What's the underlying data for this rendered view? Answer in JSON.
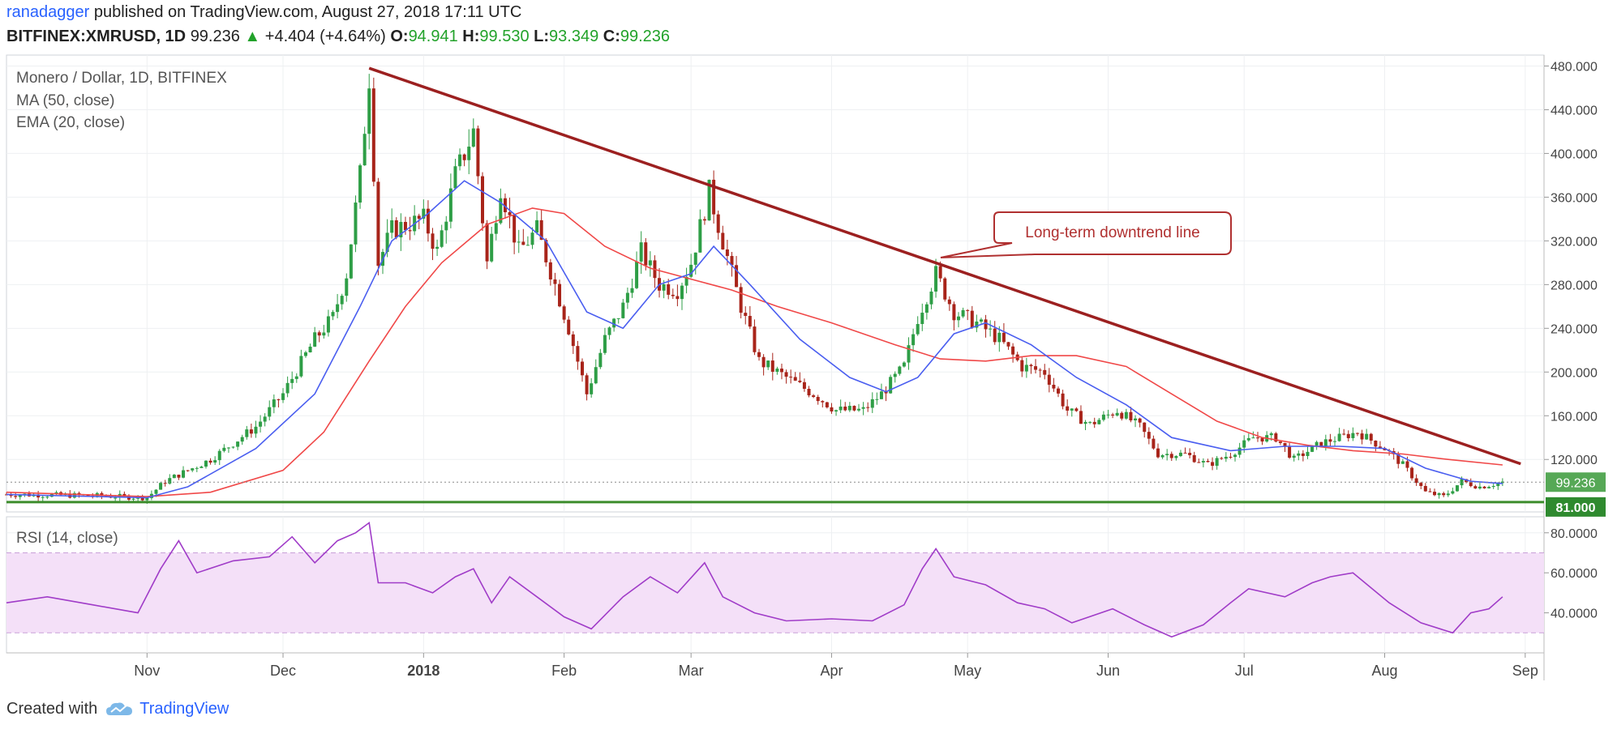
{
  "header": {
    "user": "ranadagger",
    "published_text": "published on TradingView.com, August 27, 2018 17:11 UTC",
    "symbol": "BITFINEX:XMRUSD, 1D",
    "last": "99.236",
    "change": "+4.404 (+4.64%)",
    "open_label": "O:",
    "open": "94.941",
    "high_label": "H:",
    "high": "99.530",
    "low_label": "L:",
    "low": "93.349",
    "close_label": "C:",
    "close": "99.236"
  },
  "legend": {
    "title": "Monero / Dollar, 1D, BITFINEX",
    "ma": "MA (50, close)",
    "ema": "EMA (20, close)",
    "rsi": "RSI (14, close)"
  },
  "annotation": {
    "text": "Long-term downtrend line"
  },
  "footer": {
    "created_with": "Created with",
    "brand": "TradingView"
  },
  "colors": {
    "up": "#2e9e46",
    "down": "#a8241a",
    "ma50": "#f04848",
    "ema20": "#4a5ef0",
    "trendline": "#9c2020",
    "support": "#3c8c2c",
    "rsi_line": "#a03cc8",
    "rsi_band": "#f4e0f8",
    "price_label_bg": "#2f8a2f"
  },
  "chart_data": [
    {
      "type": "candlestick",
      "title": "Monero / Dollar, 1D, BITFINEX",
      "x_ticks": [
        "Nov",
        "Dec",
        "2018",
        "Feb",
        "Mar",
        "Apr",
        "May",
        "Jun",
        "Jul",
        "Aug",
        "Sep"
      ],
      "y_ticks": [
        "480.000",
        "440.000",
        "400.000",
        "360.000",
        "320.000",
        "280.000",
        "240.000",
        "200.000",
        "160.000",
        "120.000"
      ],
      "ylim": [
        72,
        490
      ],
      "last_price_label": "99.236",
      "support_label": "81.000",
      "support_level": 81,
      "trendline": {
        "start": {
          "date": "2017-12-20",
          "value": 478
        },
        "end": {
          "date": "2018-08-31",
          "value": 116
        }
      },
      "close_path": [
        [
          "2017-10-01",
          88
        ],
        [
          "2017-10-20",
          87
        ],
        [
          "2017-11-01",
          85
        ],
        [
          "2017-11-05",
          100
        ],
        [
          "2017-11-15",
          120
        ],
        [
          "2017-11-25",
          150
        ],
        [
          "2017-12-01",
          180
        ],
        [
          "2017-12-08",
          230
        ],
        [
          "2017-12-12",
          250
        ],
        [
          "2017-12-15",
          290
        ],
        [
          "2017-12-18",
          380
        ],
        [
          "2017-12-20",
          470
        ],
        [
          "2017-12-22",
          300
        ],
        [
          "2017-12-25",
          330
        ],
        [
          "2018-01-01",
          340
        ],
        [
          "2018-01-04",
          310
        ],
        [
          "2018-01-08",
          380
        ],
        [
          "2018-01-12",
          420
        ],
        [
          "2018-01-15",
          300
        ],
        [
          "2018-01-18",
          370
        ],
        [
          "2018-01-22",
          310
        ],
        [
          "2018-01-26",
          330
        ],
        [
          "2018-01-30",
          280
        ],
        [
          "2018-02-02",
          240
        ],
        [
          "2018-02-06",
          180
        ],
        [
          "2018-02-10",
          230
        ],
        [
          "2018-02-14",
          260
        ],
        [
          "2018-02-18",
          310
        ],
        [
          "2018-02-22",
          280
        ],
        [
          "2018-02-26",
          275
        ],
        [
          "2018-03-01",
          300
        ],
        [
          "2018-03-05",
          365
        ],
        [
          "2018-03-08",
          320
        ],
        [
          "2018-03-12",
          260
        ],
        [
          "2018-03-16",
          210
        ],
        [
          "2018-03-22",
          195
        ],
        [
          "2018-03-28",
          180
        ],
        [
          "2018-04-02",
          165
        ],
        [
          "2018-04-08",
          165
        ],
        [
          "2018-04-12",
          180
        ],
        [
          "2018-04-17",
          205
        ],
        [
          "2018-04-20",
          250
        ],
        [
          "2018-04-24",
          290
        ],
        [
          "2018-04-28",
          255
        ],
        [
          "2018-05-03",
          245
        ],
        [
          "2018-05-08",
          230
        ],
        [
          "2018-05-13",
          205
        ],
        [
          "2018-05-18",
          200
        ],
        [
          "2018-05-23",
          165
        ],
        [
          "2018-05-28",
          152
        ],
        [
          "2018-06-03",
          165
        ],
        [
          "2018-06-08",
          150
        ],
        [
          "2018-06-12",
          125
        ],
        [
          "2018-06-18",
          125
        ],
        [
          "2018-06-23",
          115
        ],
        [
          "2018-06-28",
          125
        ],
        [
          "2018-07-03",
          140
        ],
        [
          "2018-07-08",
          140
        ],
        [
          "2018-07-12",
          120
        ],
        [
          "2018-07-18",
          135
        ],
        [
          "2018-07-22",
          140
        ],
        [
          "2018-07-26",
          145
        ],
        [
          "2018-08-01",
          130
        ],
        [
          "2018-08-05",
          115
        ],
        [
          "2018-08-10",
          90
        ],
        [
          "2018-08-14",
          86
        ],
        [
          "2018-08-18",
          100
        ],
        [
          "2018-08-22",
          95
        ],
        [
          "2018-08-27",
          99.236
        ]
      ],
      "series": [
        {
          "name": "MA (50, close)",
          "values": [
            [
              "2017-10-01",
              90
            ],
            [
              "2017-11-01",
              86
            ],
            [
              "2017-11-15",
              90
            ],
            [
              "2017-12-01",
              110
            ],
            [
              "2017-12-10",
              145
            ],
            [
              "2017-12-20",
              210
            ],
            [
              "2017-12-28",
              260
            ],
            [
              "2018-01-05",
              300
            ],
            [
              "2018-01-15",
              335
            ],
            [
              "2018-01-25",
              350
            ],
            [
              "2018-02-01",
              345
            ],
            [
              "2018-02-10",
              315
            ],
            [
              "2018-02-20",
              295
            ],
            [
              "2018-03-01",
              285
            ],
            [
              "2018-03-10",
              275
            ],
            [
              "2018-03-20",
              260
            ],
            [
              "2018-04-01",
              245
            ],
            [
              "2018-04-15",
              225
            ],
            [
              "2018-04-25",
              212
            ],
            [
              "2018-05-05",
              210
            ],
            [
              "2018-05-15",
              215
            ],
            [
              "2018-05-25",
              215
            ],
            [
              "2018-06-05",
              205
            ],
            [
              "2018-06-15",
              180
            ],
            [
              "2018-06-25",
              155
            ],
            [
              "2018-07-05",
              140
            ],
            [
              "2018-07-15",
              133
            ],
            [
              "2018-07-25",
              128
            ],
            [
              "2018-08-05",
              125
            ],
            [
              "2018-08-15",
              120
            ],
            [
              "2018-08-27",
              115
            ]
          ]
        },
        {
          "name": "EMA (20, close)",
          "values": [
            [
              "2017-10-01",
              88
            ],
            [
              "2017-11-01",
              85
            ],
            [
              "2017-11-10",
              95
            ],
            [
              "2017-11-25",
              130
            ],
            [
              "2017-12-08",
              180
            ],
            [
              "2017-12-18",
              260
            ],
            [
              "2017-12-25",
              320
            ],
            [
              "2018-01-02",
              345
            ],
            [
              "2018-01-10",
              375
            ],
            [
              "2018-01-18",
              355
            ],
            [
              "2018-01-28",
              320
            ],
            [
              "2018-02-06",
              255
            ],
            [
              "2018-02-14",
              240
            ],
            [
              "2018-02-22",
              280
            ],
            [
              "2018-03-01",
              290
            ],
            [
              "2018-03-06",
              315
            ],
            [
              "2018-03-14",
              280
            ],
            [
              "2018-03-25",
              230
            ],
            [
              "2018-04-05",
              195
            ],
            [
              "2018-04-13",
              182
            ],
            [
              "2018-04-20",
              195
            ],
            [
              "2018-04-28",
              235
            ],
            [
              "2018-05-05",
              245
            ],
            [
              "2018-05-15",
              225
            ],
            [
              "2018-05-25",
              195
            ],
            [
              "2018-06-05",
              170
            ],
            [
              "2018-06-15",
              140
            ],
            [
              "2018-06-28",
              128
            ],
            [
              "2018-07-10",
              132
            ],
            [
              "2018-07-22",
              132
            ],
            [
              "2018-08-01",
              130
            ],
            [
              "2018-08-10",
              112
            ],
            [
              "2018-08-20",
              100
            ],
            [
              "2018-08-27",
              98
            ]
          ]
        }
      ]
    },
    {
      "type": "line",
      "title": "RSI (14, close)",
      "x_ticks": [
        "Nov",
        "Dec",
        "2018",
        "Feb",
        "Mar",
        "Apr",
        "May",
        "Jun",
        "Jul",
        "Aug",
        "Sep"
      ],
      "y_ticks": [
        "80.0000",
        "60.0000",
        "40.0000"
      ],
      "ylim": [
        20,
        88
      ],
      "band": [
        30,
        70
      ],
      "series": [
        {
          "name": "RSI (14, close)",
          "values": [
            [
              "2017-10-01",
              45
            ],
            [
              "2017-10-10",
              48
            ],
            [
              "2017-10-20",
              44
            ],
            [
              "2017-10-30",
              40
            ],
            [
              "2017-11-04",
              62
            ],
            [
              "2017-11-08",
              76
            ],
            [
              "2017-11-12",
              60
            ],
            [
              "2017-11-20",
              66
            ],
            [
              "2017-11-28",
              68
            ],
            [
              "2017-12-03",
              78
            ],
            [
              "2017-12-08",
              65
            ],
            [
              "2017-12-13",
              76
            ],
            [
              "2017-12-17",
              80
            ],
            [
              "2017-12-20",
              85
            ],
            [
              "2017-12-22",
              55
            ],
            [
              "2017-12-28",
              55
            ],
            [
              "2018-01-03",
              50
            ],
            [
              "2018-01-08",
              58
            ],
            [
              "2018-01-12",
              62
            ],
            [
              "2018-01-16",
              45
            ],
            [
              "2018-01-20",
              58
            ],
            [
              "2018-01-26",
              48
            ],
            [
              "2018-02-01",
              38
            ],
            [
              "2018-02-07",
              32
            ],
            [
              "2018-02-14",
              48
            ],
            [
              "2018-02-20",
              58
            ],
            [
              "2018-02-26",
              50
            ],
            [
              "2018-03-04",
              65
            ],
            [
              "2018-03-08",
              48
            ],
            [
              "2018-03-15",
              40
            ],
            [
              "2018-03-22",
              36
            ],
            [
              "2018-04-01",
              37
            ],
            [
              "2018-04-10",
              36
            ],
            [
              "2018-04-17",
              44
            ],
            [
              "2018-04-21",
              62
            ],
            [
              "2018-04-24",
              72
            ],
            [
              "2018-04-28",
              58
            ],
            [
              "2018-05-05",
              54
            ],
            [
              "2018-05-12",
              45
            ],
            [
              "2018-05-18",
              42
            ],
            [
              "2018-05-24",
              35
            ],
            [
              "2018-06-02",
              42
            ],
            [
              "2018-06-09",
              34
            ],
            [
              "2018-06-15",
              28
            ],
            [
              "2018-06-22",
              34
            ],
            [
              "2018-06-28",
              45
            ],
            [
              "2018-07-02",
              52
            ],
            [
              "2018-07-10",
              48
            ],
            [
              "2018-07-16",
              55
            ],
            [
              "2018-07-20",
              58
            ],
            [
              "2018-07-25",
              60
            ],
            [
              "2018-08-02",
              45
            ],
            [
              "2018-08-09",
              35
            ],
            [
              "2018-08-16",
              30
            ],
            [
              "2018-08-20",
              40
            ],
            [
              "2018-08-24",
              42
            ],
            [
              "2018-08-27",
              48
            ]
          ]
        }
      ]
    }
  ]
}
